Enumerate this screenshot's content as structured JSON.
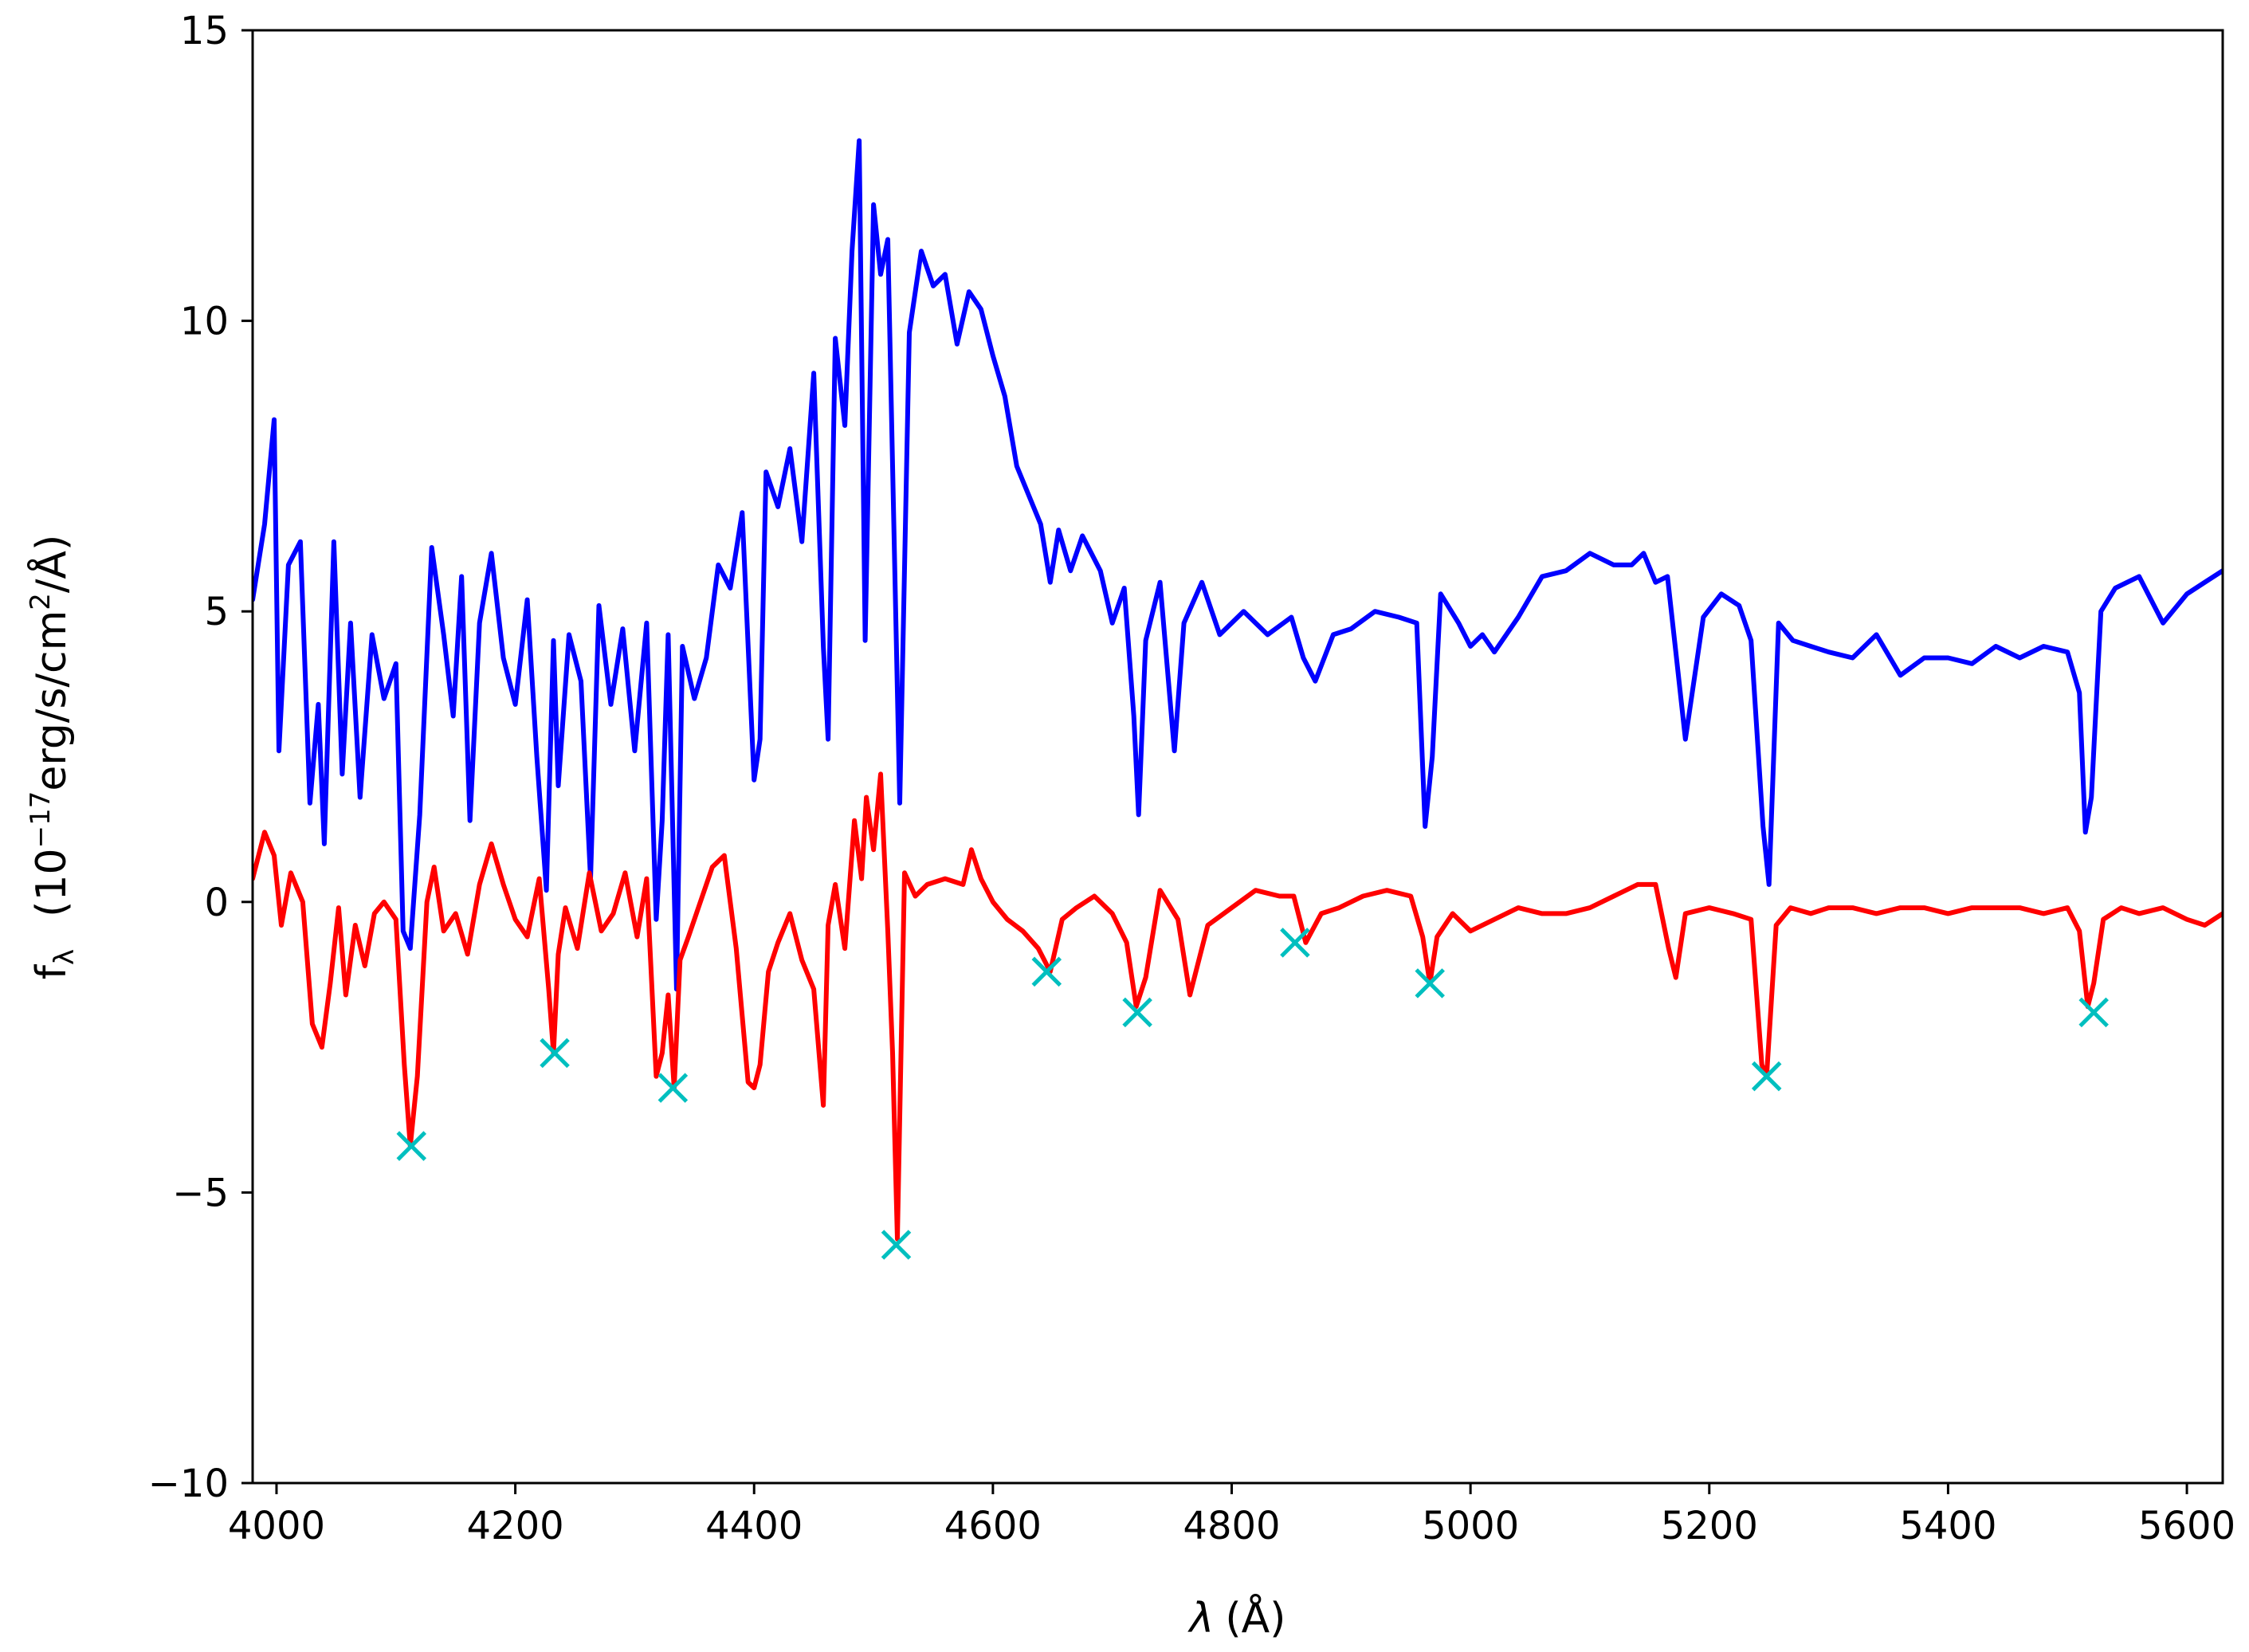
{
  "chart_data": {
    "type": "line",
    "title": "",
    "xlabel_symbol": "λ",
    "xlabel_unit": "(Å)",
    "ylabel_prefix": "f",
    "ylabel_sub": "λ",
    "ylabel_units_a": "(10",
    "ylabel_exp": "−17",
    "ylabel_units_b": "erg/s/cm",
    "ylabel_exp2": "2",
    "ylabel_units_c": "/Å)",
    "xlim": [
      3980,
      5630
    ],
    "ylim": [
      -10,
      15
    ],
    "xticks": [
      4000,
      4200,
      4400,
      4600,
      4800,
      5000,
      5200,
      5400,
      5600
    ],
    "xtick_labels": [
      "4000",
      "4200",
      "4400",
      "4600",
      "4800",
      "5000",
      "5200",
      "5400",
      "5600"
    ],
    "yticks": [
      -10,
      -5,
      0,
      5,
      10,
      15
    ],
    "ytick_labels": [
      "−10",
      "−5",
      "0",
      "5",
      "10",
      "15"
    ],
    "grid": false,
    "series": [
      {
        "color": "#0000ff",
        "x": [
          3980,
          3990,
          3998,
          4002,
          4010,
          4020,
          4028,
          4035,
          4040,
          4048,
          4055,
          4062,
          4070,
          4080,
          4090,
          4100,
          4106,
          4112,
          4120,
          4130,
          4140,
          4148,
          4155,
          4162,
          4170,
          4180,
          4190,
          4200,
          4210,
          4218,
          4226,
          4232,
          4236,
          4245,
          4255,
          4263,
          4270,
          4280,
          4290,
          4300,
          4310,
          4318,
          4323,
          4328,
          4335,
          4340,
          4350,
          4360,
          4370,
          4380,
          4390,
          4400,
          4405,
          4410,
          4420,
          4430,
          4440,
          4450,
          4458,
          4462,
          4468,
          4476,
          4482,
          4488,
          4493,
          4500,
          4506,
          4512,
          4516,
          4522,
          4530,
          4540,
          4550,
          4560,
          4570,
          4580,
          4590,
          4600,
          4610,
          4620,
          4630,
          4640,
          4648,
          4655,
          4665,
          4675,
          4690,
          4700,
          4710,
          4718,
          4722,
          4728,
          4740,
          4752,
          4760,
          4775,
          4790,
          4810,
          4830,
          4850,
          4860,
          4870,
          4885,
          4900,
          4920,
          4940,
          4955,
          4962,
          4968,
          4975,
          4990,
          5000,
          5010,
          5020,
          5040,
          5060,
          5080,
          5100,
          5120,
          5135,
          5145,
          5155,
          5165,
          5172,
          5180,
          5195,
          5210,
          5225,
          5235,
          5245,
          5250,
          5258,
          5270,
          5285,
          5300,
          5320,
          5340,
          5360,
          5380,
          5400,
          5420,
          5440,
          5460,
          5480,
          5500,
          5510,
          5515,
          5520,
          5528,
          5540,
          5560,
          5580,
          5600,
          5615,
          5630
        ],
        "y": [
          5.2,
          6.5,
          8.3,
          2.6,
          5.8,
          6.2,
          1.7,
          3.4,
          1.0,
          6.2,
          2.2,
          4.8,
          1.8,
          4.6,
          3.5,
          4.1,
          -0.5,
          -0.8,
          1.5,
          6.1,
          4.6,
          3.2,
          5.6,
          1.4,
          4.8,
          6.0,
          4.2,
          3.4,
          5.2,
          2.5,
          0.2,
          4.5,
          2.0,
          4.6,
          3.8,
          0.4,
          5.1,
          3.4,
          4.7,
          2.6,
          4.8,
          -0.3,
          1.4,
          4.6,
          -1.5,
          4.4,
          3.5,
          4.2,
          5.8,
          5.4,
          6.7,
          2.1,
          2.8,
          7.4,
          6.8,
          7.8,
          6.2,
          9.1,
          4.4,
          2.8,
          9.7,
          8.2,
          11.2,
          13.1,
          4.5,
          12.0,
          10.8,
          11.4,
          7.5,
          1.7,
          9.8,
          11.2,
          10.6,
          10.8,
          9.6,
          10.5,
          10.2,
          9.4,
          8.7,
          7.5,
          7.0,
          6.5,
          5.5,
          6.4,
          5.7,
          6.3,
          5.7,
          4.8,
          5.4,
          3.2,
          1.5,
          4.5,
          5.5,
          2.6,
          4.8,
          5.5,
          4.6,
          5.0,
          4.6,
          4.9,
          4.2,
          3.8,
          4.6,
          4.7,
          5.0,
          4.9,
          4.8,
          1.3,
          2.5,
          5.3,
          4.8,
          4.4,
          4.6,
          4.3,
          4.9,
          5.6,
          5.7,
          6.0,
          5.8,
          5.8,
          6.0,
          5.5,
          5.6,
          4.3,
          2.8,
          4.9,
          5.3,
          5.1,
          4.5,
          1.3,
          0.3,
          4.8,
          4.5,
          4.4,
          4.3,
          4.2,
          4.6,
          3.9,
          4.2,
          4.2,
          4.1,
          4.4,
          4.2,
          4.4,
          4.3,
          3.6,
          1.2,
          1.8,
          5.0,
          5.4,
          5.6,
          4.8,
          5.3,
          5.5,
          5.7
        ]
      },
      {
        "color": "#ff0000",
        "x": [
          3980,
          3990,
          3998,
          4004,
          4012,
          4022,
          4030,
          4038,
          4045,
          4052,
          4058,
          4066,
          4074,
          4082,
          4090,
          4100,
          4107,
          4112,
          4118,
          4126,
          4132,
          4140,
          4150,
          4160,
          4170,
          4180,
          4190,
          4200,
          4210,
          4220,
          4228,
          4232,
          4236,
          4242,
          4252,
          4262,
          4272,
          4282,
          4292,
          4302,
          4310,
          4318,
          4323,
          4328,
          4333,
          4338,
          4345,
          4355,
          4365,
          4375,
          4385,
          4395,
          4400,
          4405,
          4412,
          4420,
          4430,
          4440,
          4450,
          4458,
          4462,
          4468,
          4476,
          4484,
          4490,
          4494,
          4500,
          4506,
          4512,
          4516,
          4520,
          4526,
          4535,
          4545,
          4560,
          4575,
          4582,
          4590,
          4600,
          4612,
          4625,
          4638,
          4648,
          4658,
          4670,
          4685,
          4700,
          4712,
          4720,
          4728,
          4740,
          4755,
          4765,
          4780,
          4800,
          4820,
          4840,
          4852,
          4862,
          4875,
          4890,
          4910,
          4930,
          4950,
          4960,
          4966,
          4972,
          4985,
          5000,
          5020,
          5040,
          5060,
          5080,
          5100,
          5120,
          5140,
          5155,
          5166,
          5172,
          5180,
          5200,
          5220,
          5235,
          5244,
          5248,
          5256,
          5268,
          5285,
          5300,
          5320,
          5340,
          5360,
          5380,
          5400,
          5420,
          5440,
          5460,
          5480,
          5500,
          5510,
          5517,
          5522,
          5530,
          5545,
          5560,
          5580,
          5600,
          5615,
          5630
        ],
        "y": [
          0.4,
          1.2,
          0.8,
          -0.4,
          0.5,
          0.0,
          -2.1,
          -2.5,
          -1.4,
          -0.1,
          -1.6,
          -0.4,
          -1.1,
          -0.2,
          0.0,
          -0.3,
          -2.8,
          -4.2,
          -3.0,
          0.0,
          0.6,
          -0.5,
          -0.2,
          -0.9,
          0.3,
          1.0,
          0.3,
          -0.3,
          -0.6,
          0.4,
          -1.5,
          -2.6,
          -0.9,
          -0.1,
          -0.8,
          0.5,
          -0.5,
          -0.2,
          0.5,
          -0.6,
          0.4,
          -3.0,
          -2.6,
          -1.6,
          -3.2,
          -1.0,
          -0.6,
          0.0,
          0.6,
          0.8,
          -0.8,
          -3.1,
          -3.2,
          -2.8,
          -1.2,
          -0.7,
          -0.2,
          -1.0,
          -1.5,
          -3.5,
          -0.4,
          0.3,
          -0.8,
          1.4,
          0.4,
          1.8,
          0.9,
          2.2,
          -0.5,
          -2.6,
          -5.8,
          0.5,
          0.1,
          0.3,
          0.4,
          0.3,
          0.9,
          0.4,
          0.0,
          -0.3,
          -0.5,
          -0.8,
          -1.2,
          -0.3,
          -0.1,
          0.1,
          -0.2,
          -0.7,
          -1.8,
          -1.3,
          0.2,
          -0.3,
          -1.6,
          -0.4,
          -0.1,
          0.2,
          0.1,
          0.1,
          -0.7,
          -0.2,
          -0.1,
          0.1,
          0.2,
          0.1,
          -0.6,
          -1.4,
          -0.6,
          -0.2,
          -0.5,
          -0.3,
          -0.1,
          -0.2,
          -0.2,
          -0.1,
          0.1,
          0.3,
          0.3,
          -0.8,
          -1.3,
          -0.2,
          -0.1,
          -0.2,
          -0.3,
          -2.8,
          -3.0,
          -0.4,
          -0.1,
          -0.2,
          -0.1,
          -0.1,
          -0.2,
          -0.1,
          -0.1,
          -0.2,
          -0.1,
          -0.1,
          -0.1,
          -0.2,
          -0.1,
          -0.5,
          -1.8,
          -1.4,
          -0.3,
          -0.1,
          -0.2,
          -0.1,
          -0.3,
          -0.4,
          -0.2
        ]
      }
    ],
    "markers": {
      "color": "#00bfbf",
      "symbol": "x",
      "x": [
        4113,
        4233,
        4332,
        4519,
        4645,
        4721,
        4853,
        4966,
        5248,
        5522
      ],
      "y": [
        -4.2,
        -2.6,
        -3.2,
        -5.9,
        -1.2,
        -1.9,
        -0.7,
        -1.4,
        -3.0,
        -1.9
      ]
    }
  }
}
